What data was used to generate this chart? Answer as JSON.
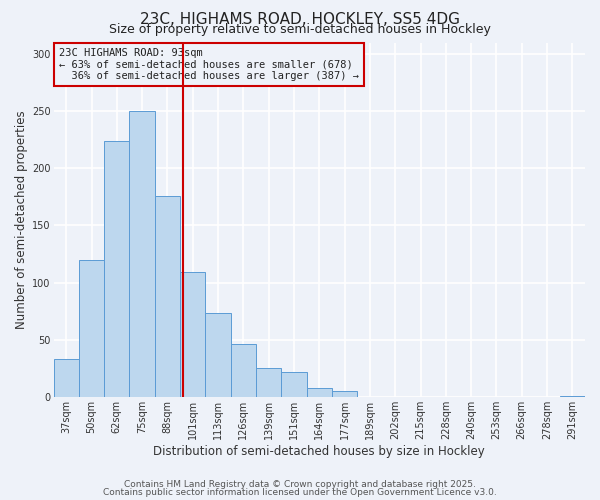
{
  "title": "23C, HIGHAMS ROAD, HOCKLEY, SS5 4DG",
  "subtitle": "Size of property relative to semi-detached houses in Hockley",
  "xlabel": "Distribution of semi-detached houses by size in Hockley",
  "ylabel": "Number of semi-detached properties",
  "categories": [
    "37sqm",
    "50sqm",
    "62sqm",
    "75sqm",
    "88sqm",
    "101sqm",
    "113sqm",
    "126sqm",
    "139sqm",
    "151sqm",
    "164sqm",
    "177sqm",
    "189sqm",
    "202sqm",
    "215sqm",
    "228sqm",
    "240sqm",
    "253sqm",
    "266sqm",
    "278sqm",
    "291sqm"
  ],
  "values": [
    33,
    120,
    224,
    250,
    176,
    109,
    73,
    46,
    25,
    22,
    8,
    5,
    0,
    0,
    0,
    0,
    0,
    0,
    0,
    0,
    1
  ],
  "bar_color": "#bdd7ee",
  "bar_edge_color": "#5b9bd5",
  "vline_x_index": 4.62,
  "vline_color": "#cc0000",
  "property_sqm": 93,
  "smaller_pct": "63%",
  "smaller_n": 678,
  "larger_pct": "36%",
  "larger_n": 387,
  "annotation_box_edge_color": "#cc0000",
  "ylim": [
    0,
    310
  ],
  "yticks": [
    0,
    50,
    100,
    150,
    200,
    250,
    300
  ],
  "footnote1": "Contains HM Land Registry data © Crown copyright and database right 2025.",
  "footnote2": "Contains public sector information licensed under the Open Government Licence v3.0.",
  "background_color": "#eef2f9",
  "grid_color": "#ffffff",
  "title_fontsize": 11,
  "subtitle_fontsize": 9,
  "axis_label_fontsize": 8.5,
  "tick_fontsize": 7,
  "annotation_fontsize": 7.5,
  "footnote_fontsize": 6.5
}
